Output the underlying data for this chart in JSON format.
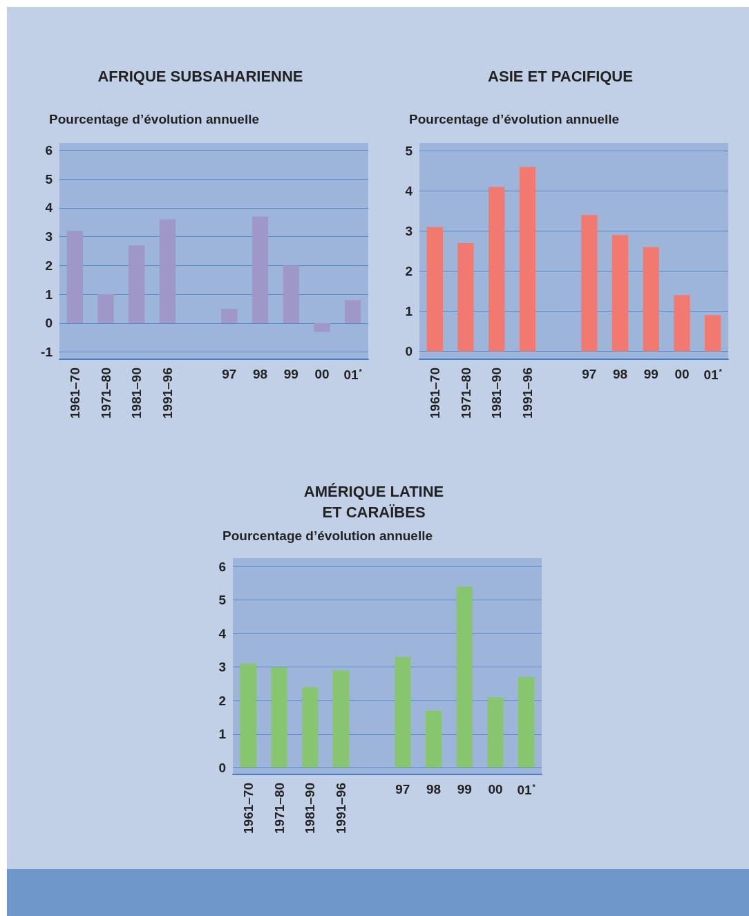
{
  "chart_data": [
    {
      "type": "bar",
      "title": "AFRIQUE SUBSAHARIENNE",
      "ylabel": "Pourcentage d’évolution annuelle",
      "categories": [
        "1961–70",
        "1971–80",
        "1981–90",
        "1991–96",
        null,
        "97",
        "98",
        "99",
        "00",
        "01$^{*}$"
      ],
      "values": [
        3.2,
        1.0,
        2.7,
        3.6,
        null,
        0.5,
        3.7,
        2.0,
        -0.3,
        0.8
      ],
      "color": "#9e97c8",
      "ylim": [
        -1.25,
        6.25
      ],
      "yticks": [
        -1,
        0,
        1,
        2,
        3,
        4,
        5,
        6
      ],
      "grid": "y"
    },
    {
      "type": "bar",
      "title": "ASIE ET PACIFIQUE",
      "ylabel": "Pourcentage d’évolution annuelle",
      "categories": [
        "1961–70",
        "1971–80",
        "1981–90",
        "1991–96",
        null,
        "97",
        "98",
        "99",
        "00",
        "01$^{*}$"
      ],
      "values": [
        3.1,
        2.7,
        4.1,
        4.6,
        null,
        3.4,
        2.9,
        2.6,
        1.4,
        0.9
      ],
      "color": "#f27970",
      "ylim": [
        -0.2,
        5.2
      ],
      "yticks": [
        0,
        1,
        2,
        3,
        4,
        5
      ],
      "grid": "y"
    },
    {
      "type": "bar",
      "title": "AMÉRIQUE LATINE\nET CARAÏBES",
      "ylabel": "Pourcentage d’évolution annuelle",
      "categories": [
        "1961–70",
        "1971–80",
        "1981–90",
        "1991–96",
        null,
        "97",
        "98",
        "99",
        "00",
        "01$^{*}$"
      ],
      "values": [
        3.1,
        3.0,
        2.4,
        2.9,
        null,
        3.3,
        1.7,
        5.4,
        2.1,
        2.7
      ],
      "color": "#87c56f",
      "ylim": [
        -0.2,
        6.25
      ],
      "yticks": [
        0,
        1,
        2,
        3,
        4,
        5,
        6
      ],
      "grid": "y"
    }
  ]
}
